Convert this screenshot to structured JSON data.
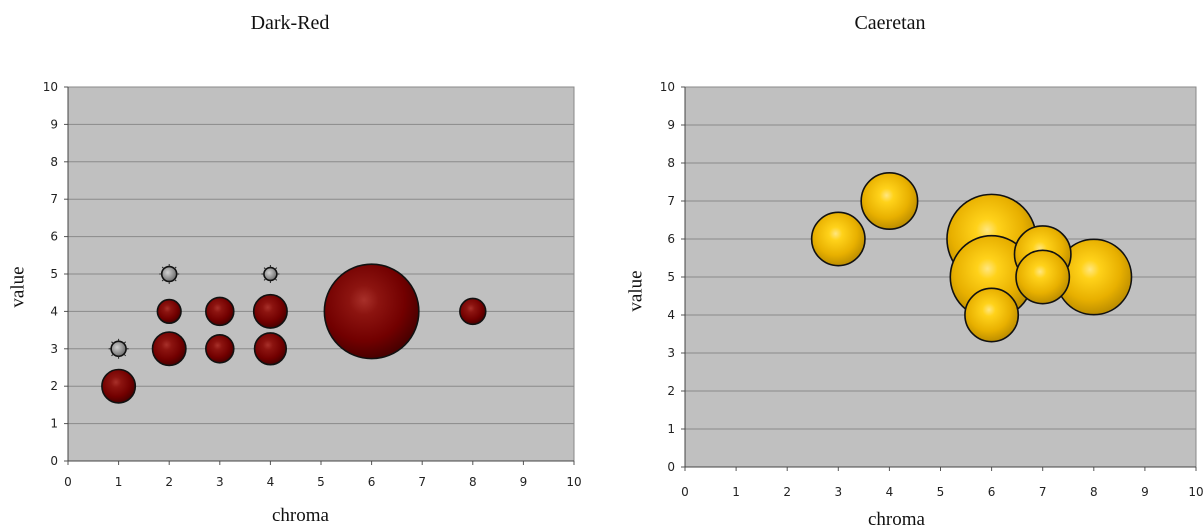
{
  "chart_data": [
    {
      "type": "bubble",
      "title": "Dark-Red",
      "xlabel": "chroma",
      "ylabel": "value",
      "xlim": [
        0,
        10
      ],
      "ylim": [
        0,
        10
      ],
      "xticks": [
        "0",
        "1",
        "2",
        "3",
        "4",
        "5",
        "6",
        "7",
        "8",
        "9",
        "10"
      ],
      "yticks": [
        "0",
        "1",
        "2",
        "3",
        "4",
        "5",
        "6",
        "7",
        "8",
        "9",
        "10"
      ],
      "grid": "horizontal",
      "color": "#7a0000",
      "points": [
        {
          "x": 1,
          "y": 3,
          "size": 0.2
        },
        {
          "x": 1,
          "y": 2,
          "size": 1
        },
        {
          "x": 2,
          "y": 5,
          "size": 0.2
        },
        {
          "x": 2,
          "y": 4,
          "size": 0.5
        },
        {
          "x": 2,
          "y": 3,
          "size": 1
        },
        {
          "x": 3,
          "y": 4,
          "size": 0.7
        },
        {
          "x": 3,
          "y": 3,
          "size": 0.7
        },
        {
          "x": 4,
          "y": 5,
          "size": 0.15
        },
        {
          "x": 4,
          "y": 4,
          "size": 1
        },
        {
          "x": 4,
          "y": 3,
          "size": 0.9
        },
        {
          "x": 6,
          "y": 4,
          "size": 8
        },
        {
          "x": 8,
          "y": 4,
          "size": 0.6
        }
      ]
    },
    {
      "type": "bubble",
      "title": "Caeretan",
      "xlabel": "chroma",
      "ylabel": "value",
      "xlim": [
        0,
        10
      ],
      "ylim": [
        0,
        10
      ],
      "xticks": [
        "0",
        "1",
        "2",
        "3",
        "4",
        "5",
        "6",
        "7",
        "8",
        "9",
        "10"
      ],
      "yticks": [
        "0",
        "1",
        "2",
        "3",
        "4",
        "5",
        "6",
        "7",
        "8",
        "9",
        "10"
      ],
      "grid": "horizontal",
      "color": "#e8b000",
      "points": [
        {
          "x": 6,
          "y": 4,
          "size": 2.5
        },
        {
          "x": 6,
          "y": 5,
          "size": 6
        },
        {
          "x": 7,
          "y": 5,
          "size": 2.5
        },
        {
          "x": 3,
          "y": 6,
          "size": 2.5
        },
        {
          "x": 4,
          "y": 7,
          "size": 2.8
        },
        {
          "x": 7,
          "y": 5.6,
          "size": 2.8
        },
        {
          "x": 8,
          "y": 5,
          "size": 5
        },
        {
          "x": 6,
          "y": 6,
          "size": 7
        }
      ]
    }
  ]
}
